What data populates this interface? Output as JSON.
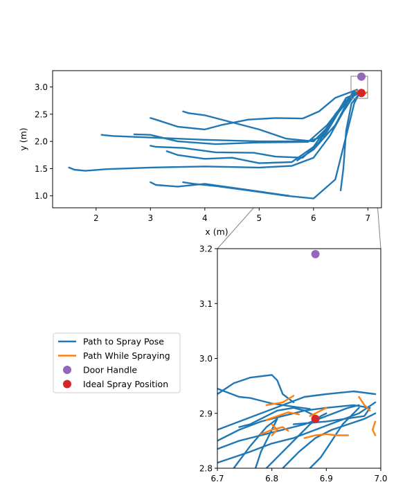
{
  "colors": {
    "path_to_spray": "#1f77b4",
    "path_while_spraying": "#ff7f0e",
    "door_handle": "#9467bd",
    "ideal_spray": "#d62728"
  },
  "legend": {
    "items": [
      {
        "label": "Path to Spray Pose",
        "kind": "line",
        "color": "#1f77b4"
      },
      {
        "label": "Path While Spraying",
        "kind": "line",
        "color": "#ff7f0e"
      },
      {
        "label": "Door Handle",
        "kind": "marker",
        "color": "#9467bd"
      },
      {
        "label": "Ideal Spray Position",
        "kind": "marker",
        "color": "#d62728"
      }
    ]
  },
  "chart_data": [
    {
      "type": "line",
      "name": "overview",
      "xlabel": "x (m)",
      "ylabel": "y (m)",
      "xlim": [
        1.2,
        7.25
      ],
      "ylim": [
        0.78,
        3.3
      ],
      "xticks": [
        2,
        3,
        4,
        5,
        6,
        7
      ],
      "yticks": [
        1.0,
        1.5,
        2.0,
        2.5,
        3.0
      ],
      "tick_labels_x": [
        "2",
        "3",
        "4",
        "5",
        "6",
        "7"
      ],
      "tick_labels_y": [
        "1.0",
        "1.5",
        "2.0",
        "2.5",
        "3.0"
      ],
      "series": [
        {
          "series": "path_to_spray",
          "points": [
            [
              1.5,
              1.52
            ],
            [
              1.6,
              1.48
            ],
            [
              1.8,
              1.46
            ],
            [
              2.2,
              1.49
            ],
            [
              3.0,
              1.52
            ],
            [
              4.0,
              1.54
            ],
            [
              5.0,
              1.52
            ],
            [
              5.6,
              1.55
            ],
            [
              6.0,
              1.7
            ],
            [
              6.3,
              2.1
            ],
            [
              6.55,
              2.55
            ],
            [
              6.75,
              2.85
            ]
          ]
        },
        {
          "series": "path_to_spray",
          "points": [
            [
              2.1,
              2.12
            ],
            [
              2.3,
              2.1
            ],
            [
              3.0,
              2.07
            ],
            [
              4.0,
              2.03
            ],
            [
              5.0,
              2.0
            ],
            [
              5.9,
              2.0
            ],
            [
              6.2,
              2.1
            ],
            [
              6.5,
              2.6
            ],
            [
              6.8,
              2.9
            ]
          ]
        },
        {
          "series": "path_to_spray",
          "points": [
            [
              2.7,
              2.13
            ],
            [
              3.0,
              2.12
            ],
            [
              3.5,
              2.0
            ],
            [
              4.2,
              1.95
            ],
            [
              5.0,
              1.98
            ],
            [
              5.9,
              1.99
            ],
            [
              6.25,
              2.3
            ],
            [
              6.6,
              2.75
            ],
            [
              6.82,
              2.88
            ]
          ]
        },
        {
          "series": "path_to_spray",
          "points": [
            [
              3.0,
              2.43
            ],
            [
              3.1,
              2.4
            ],
            [
              3.5,
              2.27
            ],
            [
              4.0,
              2.22
            ],
            [
              4.3,
              2.3
            ],
            [
              4.8,
              2.4
            ],
            [
              5.3,
              2.43
            ],
            [
              5.8,
              2.42
            ],
            [
              6.1,
              2.55
            ],
            [
              6.4,
              2.8
            ],
            [
              6.8,
              2.95
            ]
          ]
        },
        {
          "series": "path_to_spray",
          "points": [
            [
              3.6,
              2.55
            ],
            [
              3.7,
              2.52
            ],
            [
              4.0,
              2.48
            ],
            [
              4.5,
              2.35
            ],
            [
              5.0,
              2.22
            ],
            [
              5.5,
              2.05
            ],
            [
              6.0,
              2.0
            ],
            [
              6.3,
              2.3
            ],
            [
              6.6,
              2.8
            ],
            [
              6.85,
              2.9
            ]
          ]
        },
        {
          "series": "path_to_spray",
          "points": [
            [
              3.0,
              1.92
            ],
            [
              3.1,
              1.9
            ],
            [
              3.6,
              1.88
            ],
            [
              4.2,
              1.8
            ],
            [
              4.9,
              1.79
            ],
            [
              5.3,
              1.72
            ],
            [
              5.8,
              1.7
            ],
            [
              6.1,
              1.98
            ],
            [
              6.4,
              2.5
            ],
            [
              6.75,
              2.92
            ]
          ]
        },
        {
          "series": "path_to_spray",
          "points": [
            [
              3.3,
              1.82
            ],
            [
              3.5,
              1.75
            ],
            [
              4.0,
              1.68
            ],
            [
              4.5,
              1.7
            ],
            [
              5.0,
              1.6
            ],
            [
              5.6,
              1.62
            ],
            [
              6.0,
              1.9
            ],
            [
              6.35,
              2.4
            ],
            [
              6.8,
              2.95
            ]
          ]
        },
        {
          "series": "path_to_spray",
          "points": [
            [
              3.0,
              1.25
            ],
            [
              3.1,
              1.2
            ],
            [
              3.5,
              1.17
            ],
            [
              4.0,
              1.22
            ],
            [
              4.5,
              1.15
            ],
            [
              5.2,
              1.05
            ],
            [
              5.55,
              1.0
            ]
          ]
        },
        {
          "series": "path_to_spray",
          "points": [
            [
              3.6,
              1.25
            ],
            [
              3.8,
              1.22
            ],
            [
              4.2,
              1.18
            ],
            [
              4.8,
              1.1
            ],
            [
              5.5,
              1.0
            ],
            [
              6.0,
              0.95
            ],
            [
              6.4,
              1.3
            ],
            [
              6.6,
              2.1
            ],
            [
              6.75,
              2.7
            ],
            [
              6.85,
              2.9
            ]
          ]
        },
        {
          "series": "path_to_spray",
          "points": [
            [
              6.5,
              1.1
            ],
            [
              6.55,
              1.5
            ],
            [
              6.6,
              2.2
            ],
            [
              6.7,
              2.7
            ],
            [
              6.85,
              2.88
            ]
          ]
        },
        {
          "series": "path_to_spray",
          "points": [
            [
              5.7,
              1.65
            ],
            [
              6.0,
              1.85
            ],
            [
              6.4,
              2.3
            ],
            [
              6.72,
              2.9
            ],
            [
              6.92,
              2.94
            ]
          ]
        },
        {
          "series": "path_while_spraying",
          "points": [
            [
              6.78,
              2.93
            ],
            [
              6.85,
              2.9
            ],
            [
              6.92,
              2.86
            ],
            [
              6.98,
              2.9
            ]
          ]
        },
        {
          "series": "door_handle",
          "points": [
            [
              6.88,
              3.19
            ]
          ]
        },
        {
          "series": "ideal_spray",
          "points": [
            [
              6.88,
              2.89
            ]
          ]
        }
      ]
    },
    {
      "type": "line",
      "name": "zoom",
      "xlabel": "",
      "ylabel": "",
      "xlim": [
        6.7,
        7.0
      ],
      "ylim": [
        2.8,
        3.2
      ],
      "xticks": [
        6.7,
        6.8,
        6.9,
        7.0
      ],
      "yticks": [
        2.8,
        2.9,
        3.0,
        3.1,
        3.2
      ],
      "tick_labels_x": [
        "6.7",
        "6.8",
        "6.9",
        "7.0"
      ],
      "tick_labels_y": [
        "2.8",
        "2.9",
        "3.0",
        "3.1",
        "3.2"
      ],
      "series": [
        {
          "series": "path_to_spray",
          "points": [
            [
              6.7,
              2.945
            ],
            [
              6.74,
              2.93
            ],
            [
              6.76,
              2.928
            ],
            [
              6.8,
              2.918
            ],
            [
              6.84,
              2.912
            ],
            [
              6.87,
              2.908
            ]
          ]
        },
        {
          "series": "path_to_spray",
          "points": [
            [
              6.7,
              2.935
            ],
            [
              6.73,
              2.955
            ],
            [
              6.76,
              2.965
            ],
            [
              6.8,
              2.97
            ],
            [
              6.81,
              2.96
            ],
            [
              6.82,
              2.935
            ],
            [
              6.84,
              2.92
            ]
          ]
        },
        {
          "series": "path_to_spray",
          "points": [
            [
              6.7,
              2.87
            ],
            [
              6.74,
              2.885
            ],
            [
              6.78,
              2.9
            ],
            [
              6.82,
              2.915
            ],
            [
              6.86,
              2.93
            ],
            [
              6.9,
              2.935
            ],
            [
              6.95,
              2.94
            ],
            [
              6.99,
              2.935
            ]
          ]
        },
        {
          "series": "path_to_spray",
          "points": [
            [
              6.7,
              2.85
            ],
            [
              6.74,
              2.87
            ],
            [
              6.78,
              2.885
            ],
            [
              6.82,
              2.895
            ],
            [
              6.86,
              2.905
            ],
            [
              6.9,
              2.91
            ],
            [
              6.95,
              2.915
            ],
            [
              6.98,
              2.91
            ],
            [
              6.97,
              2.895
            ],
            [
              6.9,
              2.885
            ],
            [
              6.84,
              2.88
            ]
          ]
        },
        {
          "series": "path_to_spray",
          "points": [
            [
              6.7,
              2.835
            ],
            [
              6.74,
              2.85
            ],
            [
              6.78,
              2.86
            ],
            [
              6.82,
              2.87
            ],
            [
              6.86,
              2.88
            ],
            [
              6.9,
              2.895
            ],
            [
              6.94,
              2.91
            ],
            [
              6.96,
              2.915
            ]
          ]
        },
        {
          "series": "path_to_spray",
          "points": [
            [
              6.7,
              2.81
            ],
            [
              6.76,
              2.83
            ],
            [
              6.8,
              2.845
            ],
            [
              6.84,
              2.855
            ],
            [
              6.88,
              2.87
            ],
            [
              6.92,
              2.885
            ],
            [
              6.96,
              2.9
            ],
            [
              6.99,
              2.92
            ]
          ]
        },
        {
          "series": "path_to_spray",
          "points": [
            [
              6.73,
              2.8
            ],
            [
              6.76,
              2.84
            ],
            [
              6.79,
              2.875
            ],
            [
              6.81,
              2.89
            ],
            [
              6.8,
              2.87
            ],
            [
              6.78,
              2.83
            ],
            [
              6.77,
              2.8
            ]
          ]
        },
        {
          "series": "path_to_spray",
          "points": [
            [
              6.79,
              2.8
            ],
            [
              6.82,
              2.83
            ],
            [
              6.85,
              2.86
            ],
            [
              6.87,
              2.88
            ],
            [
              6.89,
              2.895
            ],
            [
              6.9,
              2.9
            ]
          ]
        },
        {
          "series": "path_to_spray",
          "points": [
            [
              6.82,
              2.8
            ],
            [
              6.85,
              2.83
            ],
            [
              6.88,
              2.855
            ],
            [
              6.91,
              2.87
            ],
            [
              6.94,
              2.88
            ],
            [
              6.97,
              2.89
            ],
            [
              6.99,
              2.9
            ]
          ]
        },
        {
          "series": "path_to_spray",
          "points": [
            [
              6.87,
              2.8
            ],
            [
              6.89,
              2.82
            ],
            [
              6.91,
              2.85
            ],
            [
              6.93,
              2.88
            ],
            [
              6.95,
              2.9
            ],
            [
              6.96,
              2.91
            ]
          ]
        },
        {
          "series": "path_to_spray",
          "points": [
            [
              6.74,
              2.875
            ],
            [
              6.76,
              2.88
            ],
            [
              6.79,
              2.895
            ],
            [
              6.81,
              2.905
            ],
            [
              6.84,
              2.91
            ],
            [
              6.86,
              2.905
            ],
            [
              6.88,
              2.895
            ]
          ]
        },
        {
          "series": "path_while_spraying",
          "points": [
            [
              6.79,
              2.915
            ],
            [
              6.82,
              2.92
            ],
            [
              6.84,
              2.932
            ]
          ]
        },
        {
          "series": "path_while_spraying",
          "points": [
            [
              6.79,
              2.888
            ],
            [
              6.81,
              2.895
            ],
            [
              6.83,
              2.902
            ],
            [
              6.85,
              2.898
            ]
          ]
        },
        {
          "series": "path_while_spraying",
          "points": [
            [
              6.78,
              2.862
            ],
            [
              6.8,
              2.87
            ],
            [
              6.82,
              2.875
            ],
            [
              6.83,
              2.868
            ]
          ]
        },
        {
          "series": "path_while_spraying",
          "points": [
            [
              6.8,
              2.88
            ],
            [
              6.81,
              2.87
            ],
            [
              6.8,
              2.86
            ]
          ]
        },
        {
          "series": "path_while_spraying",
          "points": [
            [
              6.86,
              2.855
            ],
            [
              6.88,
              2.86
            ],
            [
              6.9,
              2.862
            ],
            [
              6.92,
              2.86
            ],
            [
              6.94,
              2.86
            ]
          ]
        },
        {
          "series": "path_while_spraying",
          "points": [
            [
              6.87,
              2.895
            ],
            [
              6.89,
              2.905
            ],
            [
              6.9,
              2.91
            ]
          ]
        },
        {
          "series": "path_while_spraying",
          "points": [
            [
              6.96,
              2.93
            ],
            [
              6.97,
              2.915
            ],
            [
              6.98,
              2.905
            ]
          ]
        },
        {
          "series": "path_while_spraying",
          "points": [
            [
              6.99,
              2.885
            ],
            [
              6.985,
              2.87
            ],
            [
              6.99,
              2.86
            ]
          ]
        },
        {
          "series": "door_handle",
          "points": [
            [
              6.88,
              3.19
            ]
          ]
        },
        {
          "series": "ideal_spray",
          "points": [
            [
              6.88,
              2.89
            ]
          ]
        }
      ]
    }
  ]
}
